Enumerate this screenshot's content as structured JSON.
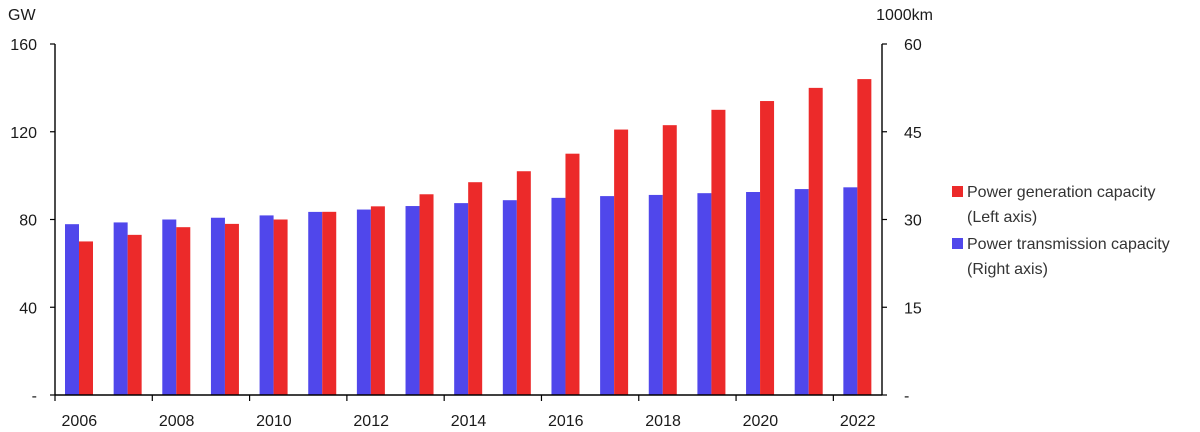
{
  "chart_data": {
    "type": "bar",
    "categories": [
      "2006",
      "2007",
      "2008",
      "2009",
      "2010",
      "2011",
      "2012",
      "2013",
      "2014",
      "2015",
      "2016",
      "2017",
      "2018",
      "2019",
      "2020",
      "2021",
      "2022"
    ],
    "x_tick_labels": [
      "2006",
      "2008",
      "2010",
      "2012",
      "2014",
      "2016",
      "2018",
      "2020",
      "2022"
    ],
    "left_axis": {
      "unit": "GW",
      "ylim": [
        0,
        160
      ],
      "ticks": [
        0,
        40,
        80,
        120,
        160
      ],
      "tick_labels": [
        "-",
        "40",
        "80",
        "120",
        "160"
      ]
    },
    "right_axis": {
      "unit": "1000km",
      "ylim": [
        0,
        60
      ],
      "ticks": [
        0,
        15,
        30,
        45,
        60
      ],
      "tick_labels": [
        "-",
        "15",
        "30",
        "45",
        "60"
      ]
    },
    "series": [
      {
        "name": "Power transmission capacity (Right axis)",
        "axis": "right",
        "color": "#5047EB",
        "values": [
          29.2,
          29.5,
          30.0,
          30.3,
          30.7,
          31.3,
          31.7,
          32.3,
          32.8,
          33.3,
          33.7,
          34.0,
          34.2,
          34.5,
          34.7,
          35.2,
          35.5
        ]
      },
      {
        "name": "Power generation capacity (Left axis)",
        "axis": "left",
        "color": "#EC2A2A",
        "values": [
          70,
          73,
          76.5,
          78,
          80,
          83.5,
          86,
          91.5,
          97,
          102,
          110,
          121,
          123,
          130,
          134,
          140,
          144
        ]
      }
    ],
    "legend": {
      "position": "right",
      "entries": [
        {
          "line1": "Power generation capacity",
          "line2": "(Left axis)",
          "color": "#EC2A2A"
        },
        {
          "line1": "Power transmission capacity",
          "line2": "(Right axis)",
          "color": "#5047EB"
        }
      ]
    },
    "grid": false
  }
}
